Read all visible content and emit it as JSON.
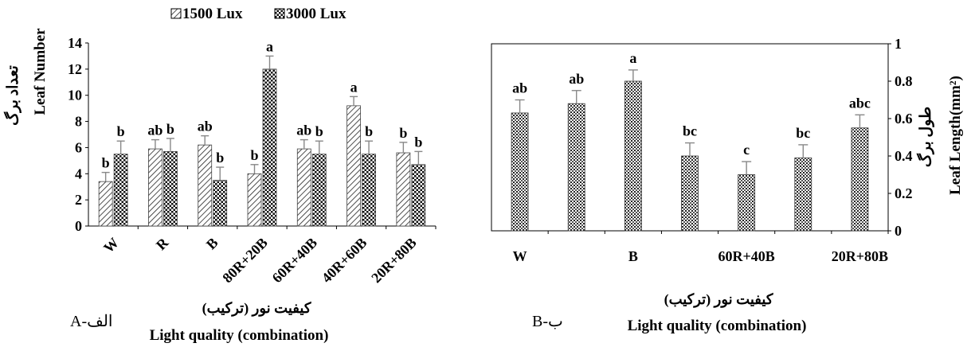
{
  "chart_data": [
    {
      "type": "bar",
      "panel_label": "A-الف",
      "ylabel_fa": "تعداد برگ",
      "ylabel_en": "Leaf Number",
      "xlabel_fa": "کیفیت نور (ترکیب)",
      "xlabel_en": "Light quality (combination)",
      "ylim": [
        0,
        14
      ],
      "yticks": [
        0,
        2,
        4,
        6,
        8,
        10,
        12,
        14
      ],
      "categories": [
        "W",
        "R",
        "B",
        "80R+20B",
        "60R+40B",
        "40R+60B",
        "20R+80B"
      ],
      "legend_position": "top",
      "series": [
        {
          "name": "1500 Lux",
          "pattern": "diagonal-hatch",
          "values": [
            3.4,
            5.9,
            6.2,
            4.0,
            5.9,
            9.2,
            5.6
          ],
          "errors": [
            0.7,
            0.7,
            0.7,
            0.7,
            0.7,
            0.7,
            0.8
          ],
          "letters": [
            "b",
            "ab",
            "ab",
            "b",
            "ab",
            "a",
            "b"
          ]
        },
        {
          "name": "3000 Lux",
          "pattern": "checker",
          "values": [
            5.5,
            5.7,
            3.5,
            12.0,
            5.5,
            5.5,
            4.7
          ],
          "errors": [
            1.0,
            1.0,
            1.0,
            1.0,
            1.0,
            1.0,
            1.0
          ],
          "letters": [
            "b",
            "b",
            "b",
            "a",
            "b",
            "b",
            "b"
          ]
        }
      ]
    },
    {
      "type": "bar",
      "panel_label": "B-ب",
      "ylabel_fa": "طول برگ",
      "ylabel_en": "Leaf Length(mm²)",
      "xlabel_fa": "کیفیت نور (ترکیب)",
      "xlabel_en": "Light quality (combination)",
      "ylim": [
        0,
        1
      ],
      "yticks": [
        0,
        0.2,
        0.4,
        0.6,
        0.8,
        1
      ],
      "categories": [
        "W",
        "",
        "B",
        "",
        "60R+40B",
        "",
        "20R+80B"
      ],
      "series": [
        {
          "pattern": "dotted",
          "values": [
            0.63,
            0.68,
            0.8,
            0.4,
            0.3,
            0.39,
            0.55
          ],
          "errors": [
            0.07,
            0.07,
            0.06,
            0.07,
            0.07,
            0.07,
            0.07
          ],
          "letters": [
            "ab",
            "ab",
            "a",
            "bc",
            "c",
            "bc",
            "abc"
          ]
        }
      ]
    }
  ]
}
